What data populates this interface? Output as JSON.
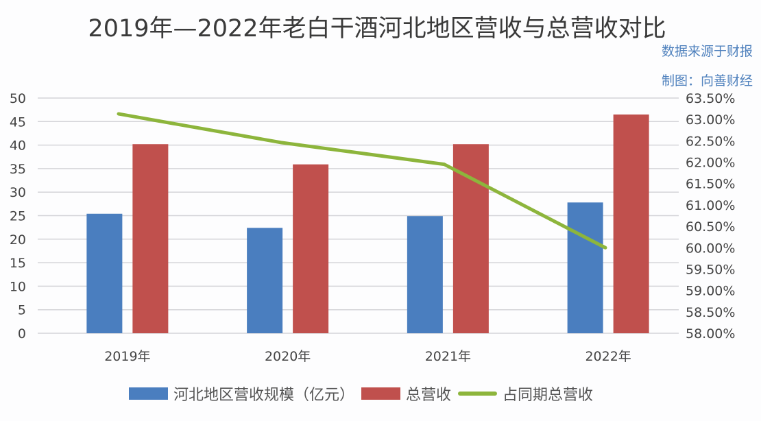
{
  "chart_data": {
    "type": "bar",
    "title": "2019年—2022年老白干酒河北地区营收与总营收对比",
    "annotations": [
      "数据来源于财报",
      "制图：向善财经"
    ],
    "categories": [
      "2019年",
      "2020年",
      "2021年",
      "2022年"
    ],
    "series": [
      {
        "name": "河北地区营收规模（亿元）",
        "type": "bar",
        "axis": "left",
        "color": "#4a7ebf",
        "values": [
          25.4,
          22.4,
          24.9,
          27.8
        ]
      },
      {
        "name": "总营收",
        "type": "bar",
        "axis": "left",
        "color": "#c0504d",
        "values": [
          40.2,
          35.9,
          40.2,
          46.5
        ]
      },
      {
        "name": "占同期总营收",
        "type": "line",
        "axis": "right",
        "color": "#8db53c",
        "values": [
          63.13,
          62.46,
          61.95,
          60.0
        ]
      }
    ],
    "left_axis": {
      "ylim": [
        0,
        50
      ],
      "ticks": [
        "0",
        "5",
        "10",
        "15",
        "20",
        "25",
        "30",
        "35",
        "40",
        "45",
        "50"
      ]
    },
    "right_axis": {
      "ylim": [
        58.0,
        63.5
      ],
      "unit": "%",
      "ticks": [
        "58.00%",
        "58.50%",
        "59.00%",
        "59.50%",
        "60.00%",
        "60.50%",
        "61.00%",
        "61.50%",
        "62.00%",
        "62.50%",
        "63.00%",
        "63.50%"
      ]
    },
    "grid": true,
    "legend": "bottom",
    "xlabel": "",
    "ylabel": ""
  }
}
